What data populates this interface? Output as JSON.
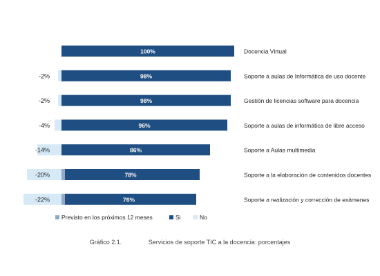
{
  "chart_data": {
    "type": "bar",
    "stacked": true,
    "orientation": "horizontal",
    "categories": [
      "Docencia Virtual",
      "Soporte a aulas de Informática de uso docente",
      "Gestión de licencias software para docencia",
      "Soporte a aulas de informática de libre acceso",
      "Soporte a Aulas multimedia",
      "Soporte a la elaboración de contenidos docentes",
      "Soporte a realización y corrección de exámenes"
    ],
    "series": [
      {
        "name": "Previsto en los próximos 12 meses",
        "color": "#8eaac8",
        "values": [
          0,
          0,
          0,
          0,
          0,
          2,
          2
        ],
        "labels": [
          "",
          "",
          "",
          "",
          "",
          "2%",
          "2%"
        ]
      },
      {
        "name": "Si",
        "color": "#1f4e82",
        "values": [
          100,
          98,
          98,
          96,
          86,
          78,
          76
        ],
        "labels": [
          "100%",
          "98%",
          "98%",
          "96%",
          "86%",
          "78%",
          "76%"
        ]
      },
      {
        "name": "No",
        "color": "#d5e9f6",
        "values": [
          0,
          2,
          2,
          4,
          14,
          20,
          22
        ],
        "labels": [
          "",
          "-2%",
          "-2%",
          "-4%",
          "-14%",
          "-20%",
          "-22%"
        ]
      }
    ],
    "xlim": [
      -25,
      100
    ],
    "legend_position": "bottom-left",
    "grid": false
  },
  "caption": {
    "number": "Gráfico 2.1.",
    "text": "Servicios de soporte TIC a la docencia: porcentajes"
  }
}
